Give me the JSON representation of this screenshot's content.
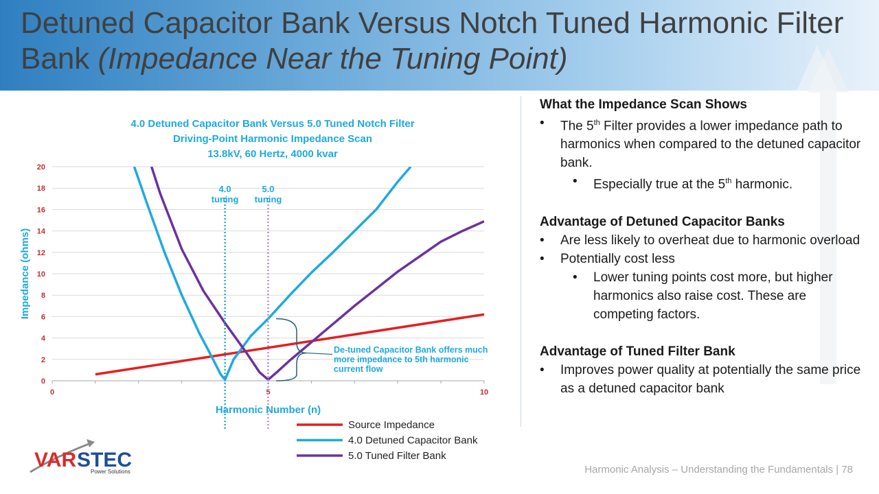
{
  "slide": {
    "title_main": "Detuned Capacitor Bank Versus Notch Tuned Harmonic Filter Bank ",
    "title_italic": "(Impedance Near the Tuning Point)",
    "footer": "Harmonic Analysis – Understanding the Fundamentals  |  78",
    "logo": {
      "var": "VAR",
      "stec": "STEC",
      "sub": "Power Solutions"
    }
  },
  "colors": {
    "source": "#e41f1f",
    "detuned": "#1ea9e1",
    "tuned": "#6a329f",
    "header": "#2f7fc0",
    "title_text": "#1ea9e1"
  },
  "chart_data": {
    "type": "line",
    "title_lines": [
      "4.0 Detuned Capacitor Bank Versus  5.0 Tuned Notch Filter",
      "Driving-Point Harmonic Impedance Scan",
      "13.8kV, 60 Hertz, 4000 kvar"
    ],
    "xlabel": "Harmonic Number (n)",
    "ylabel": "Impedance (ohms)",
    "xlim": [
      0,
      10
    ],
    "ylim": [
      0,
      20
    ],
    "xticks": [
      0,
      5,
      10
    ],
    "yticks": [
      0,
      2,
      4,
      6,
      8,
      10,
      12,
      14,
      16,
      18,
      20
    ],
    "grid": true,
    "series": [
      {
        "name": "Source Impedance",
        "color": "#e41f1f",
        "x": [
          1,
          10
        ],
        "y": [
          0.6,
          6.2
        ]
      },
      {
        "name": "4.0 Detuned Capacitor Bank",
        "color": "#1ea9e1",
        "x": [
          1.9,
          2.2,
          2.6,
          3.0,
          3.4,
          3.7,
          3.9,
          4.0,
          4.2,
          4.6,
          5.0,
          5.5,
          6.0,
          6.5,
          7.0,
          7.5,
          8.0,
          8.3
        ],
        "y": [
          20,
          16.5,
          12,
          8,
          4.5,
          2.2,
          0.6,
          0.1,
          2.0,
          4.2,
          5.8,
          8.0,
          10.1,
          12.0,
          14.0,
          16.0,
          18.6,
          20
        ]
      },
      {
        "name": "5.0 Tuned Filter Bank",
        "color": "#6a329f",
        "x": [
          2.3,
          2.5,
          3.0,
          3.5,
          4.0,
          4.5,
          4.8,
          5.0,
          5.2,
          5.5,
          6.0,
          6.5,
          7.0,
          7.5,
          8.0,
          8.5,
          9.0,
          9.5,
          10.0
        ],
        "y": [
          20,
          17.5,
          12.3,
          8.4,
          5.4,
          2.6,
          0.8,
          0.1,
          0.8,
          1.9,
          3.6,
          5.3,
          7.0,
          8.6,
          10.2,
          11.6,
          13.0,
          14.0,
          14.9
        ]
      }
    ],
    "vlines": [
      {
        "x": 4.0,
        "label_top": "4.0",
        "label_bottom": "tuning",
        "color": "#1ea9e1"
      },
      {
        "x": 5.0,
        "label_top": "5.0",
        "label_bottom": "tuning",
        "color": "#b48bd1"
      }
    ],
    "annotation": "De-tuned Capacitor Bank offers much more impedance to 5th harmonic current flow",
    "legend_position": "bottom"
  },
  "text": {
    "h1": "What the Impedance Scan Shows",
    "p1_pre": "The 5",
    "p1_sup": "th",
    "p1_post": " Filter provides a lower impedance path to harmonics when compared to the detuned capacitor bank.",
    "p2_pre": "Especially true at the 5",
    "p2_sup": "th",
    "p2_post": " harmonic.",
    "h2": "Advantage of Detuned Capacitor Banks",
    "p3": "Are less likely to overheat due to harmonic overload",
    "p4": "Potentially cost less",
    "p5": "Lower tuning points cost more, but higher harmonics also raise cost. These are competing factors.",
    "h3": "Advantage of Tuned Filter Bank",
    "p6": "Improves power quality at potentially the same price as a detuned capacitor  bank"
  }
}
